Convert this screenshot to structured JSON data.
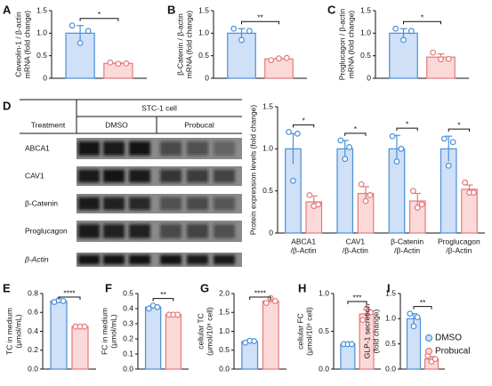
{
  "chart_data": [
    {
      "type": "bar",
      "panel": "A",
      "y_label": [
        "Caveolin-1 / β-actin",
        "mRNA (fold change)"
      ],
      "categories": [
        null
      ],
      "ylim": [
        0,
        1.5
      ],
      "yticks": [
        0,
        0.5,
        {
          "value": 1,
          "label": "1.0"
        },
        1.5
      ],
      "significance": [
        "*"
      ],
      "series": [
        {
          "color": "#4a90d9",
          "values": [
            1.0
          ],
          "errors": [
            0.17
          ],
          "points": [
            [
              1.17,
              0.78,
              1.05
            ]
          ]
        },
        {
          "color": "#e57a7a",
          "values": [
            0.33
          ],
          "errors": [
            0.02
          ],
          "points": [
            [
              0.35,
              0.32,
              0.33
            ]
          ]
        }
      ]
    },
    {
      "type": "bar",
      "panel": "B",
      "y_label": [
        "β-Catenin / β-actin",
        "mRNA (fold change)"
      ],
      "categories": [
        null
      ],
      "ylim": [
        0,
        1.5
      ],
      "yticks": [
        0,
        0.5,
        {
          "value": 1,
          "label": "1.0"
        },
        1.5
      ],
      "significance": [
        "**"
      ],
      "series": [
        {
          "color": "#4a90d9",
          "values": [
            1.0
          ],
          "errors": [
            0.1
          ],
          "points": [
            [
              1.1,
              0.85,
              1.05
            ]
          ]
        },
        {
          "color": "#e57a7a",
          "values": [
            0.43
          ],
          "errors": [
            0.02
          ],
          "points": [
            [
              0.4,
              0.44,
              0.45
            ]
          ]
        }
      ]
    },
    {
      "type": "bar",
      "panel": "C",
      "y_label": [
        "Proglucagon / β-actin",
        "mRNA (fold change)"
      ],
      "categories": [
        null
      ],
      "ylim": [
        0,
        1.5
      ],
      "yticks": [
        0,
        0.5,
        {
          "value": 1,
          "label": "1.0"
        },
        1.5
      ],
      "significance": [
        "*"
      ],
      "series": [
        {
          "color": "#4a90d9",
          "values": [
            1.0
          ],
          "errors": [
            0.1
          ],
          "points": [
            [
              1.1,
              0.85,
              1.05
            ]
          ]
        },
        {
          "color": "#e57a7a",
          "values": [
            0.47
          ],
          "errors": [
            0.07
          ],
          "points": [
            [
              0.57,
              0.42,
              0.43
            ]
          ]
        }
      ]
    },
    {
      "type": "bar",
      "y_label": [
        "Protein expression levels (fold change)"
      ],
      "categories": [
        [
          "ABCA1",
          "/β-Actin"
        ],
        [
          "CAV1",
          "/β-Actin"
        ],
        [
          "β-Catenin",
          "/β-Actin"
        ],
        [
          "Proglucagon",
          "/β-Actin"
        ]
      ],
      "ylim": [
        0,
        1.5
      ],
      "yticks": [
        0,
        0.5,
        {
          "value": 1,
          "label": "1.0"
        },
        1.5
      ],
      "significance": [
        "*",
        "*",
        "*",
        "*"
      ],
      "series": [
        {
          "color": "#4a90d9",
          "values": [
            1.0,
            1.0,
            1.0,
            1.0
          ],
          "errors": [
            0.18,
            0.1,
            0.16,
            0.15
          ],
          "points": [
            [
              1.2,
              0.62,
              1.18
            ],
            [
              1.1,
              0.88,
              1.02
            ],
            [
              1.15,
              0.85,
              1.0
            ],
            [
              1.12,
              0.8,
              1.08
            ]
          ]
        },
        {
          "color": "#e57a7a",
          "values": [
            0.37,
            0.47,
            0.38,
            0.52
          ],
          "errors": [
            0.07,
            0.08,
            0.09,
            0.05
          ],
          "points": [
            [
              0.45,
              0.32,
              0.34
            ],
            [
              0.58,
              0.38,
              0.45
            ],
            [
              0.5,
              0.3,
              0.34
            ],
            [
              0.6,
              0.48,
              0.48
            ]
          ]
        }
      ]
    },
    {
      "type": "bar",
      "panel": "E",
      "y_label": [
        "TC in medium",
        "(μmol/mL)"
      ],
      "categories": [
        null
      ],
      "ylim": [
        0,
        0.8
      ],
      "yticks": [
        {
          "value": 0,
          "label": "0.0"
        },
        0.2,
        0.4,
        0.6,
        0.8
      ],
      "significance": [
        "****"
      ],
      "series": [
        {
          "color": "#4a90d9",
          "values": [
            0.72
          ],
          "errors": [
            0.01
          ],
          "points": [
            [
              0.71,
              0.73,
              0.72
            ]
          ]
        },
        {
          "color": "#e57a7a",
          "values": [
            0.45
          ],
          "errors": [
            0.003
          ],
          "points": [
            [
              0.45,
              0.45,
              0.45
            ]
          ]
        }
      ]
    },
    {
      "type": "bar",
      "panel": "F",
      "y_label": [
        "FC in medium",
        "(μmol/mL)"
      ],
      "categories": [
        null
      ],
      "ylim": [
        0,
        0.5
      ],
      "yticks": [
        {
          "value": 0,
          "label": "0.0"
        },
        0.1,
        0.2,
        0.3,
        0.4,
        0.5
      ],
      "significance": [
        "**"
      ],
      "series": [
        {
          "color": "#4a90d9",
          "values": [
            0.41
          ],
          "errors": [
            0.01
          ],
          "points": [
            [
              0.4,
              0.42,
              0.41
            ]
          ]
        },
        {
          "color": "#e57a7a",
          "values": [
            0.36
          ],
          "errors": [
            0.003
          ],
          "points": [
            [
              0.36,
              0.36,
              0.36
            ]
          ]
        }
      ]
    },
    {
      "type": "bar",
      "panel": "G",
      "y_label": [
        "cellular TC",
        "(μmol/10⁶ cell)"
      ],
      "categories": [
        null
      ],
      "ylim": [
        0,
        2
      ],
      "yticks": [
        {
          "value": 0,
          "label": "0.0"
        },
        0.5,
        {
          "value": 1,
          "label": "1.0"
        },
        1.5,
        {
          "value": 2,
          "label": "2.0"
        }
      ],
      "significance": [
        "****"
      ],
      "series": [
        {
          "color": "#4a90d9",
          "values": [
            0.73
          ],
          "errors": [
            0.03
          ],
          "points": [
            [
              0.7,
              0.75,
              0.74
            ]
          ]
        },
        {
          "color": "#e57a7a",
          "values": [
            1.8
          ],
          "errors": [
            0.05
          ],
          "points": [
            [
              1.75,
              1.88,
              1.8
            ]
          ]
        }
      ]
    },
    {
      "type": "bar",
      "panel": "H",
      "y_label": [
        "cellular FC",
        "(μmol/10⁶ cell)"
      ],
      "categories": [
        null
      ],
      "ylim": [
        0,
        1
      ],
      "yticks": [
        {
          "value": 0,
          "label": "0.0"
        },
        0.5,
        {
          "value": 1,
          "label": "1.0"
        }
      ],
      "significance": [
        "***"
      ],
      "series": [
        {
          "color": "#4a90d9",
          "values": [
            0.33
          ],
          "errors": [
            0.01
          ],
          "points": [
            [
              0.33,
              0.33,
              0.33
            ]
          ]
        },
        {
          "color": "#e57a7a",
          "values": [
            0.73
          ],
          "errors": [
            0.06
          ],
          "points": [
            [
              0.65,
              0.8,
              0.75
            ]
          ]
        }
      ]
    },
    {
      "type": "bar",
      "panel": "I",
      "y_label": [
        "GLP-1 secretion",
        "(fold change)"
      ],
      "categories": [
        null
      ],
      "ylim": [
        0,
        1.5
      ],
      "yticks": [
        {
          "value": 0,
          "label": "0.0"
        },
        0.5,
        {
          "value": 1,
          "label": "1.0"
        },
        1.5
      ],
      "significance": [
        "**"
      ],
      "series": [
        {
          "name": "DMSO",
          "color": "#4a90d9",
          "values": [
            1.0
          ],
          "errors": [
            0.1
          ],
          "points": [
            [
              1.1,
              0.85,
              1.03
            ]
          ]
        },
        {
          "name": "Probucal",
          "color": "#e57a7a",
          "values": [
            0.2
          ],
          "errors": [
            0.05
          ],
          "points": [
            [
              0.27,
              0.15,
              0.2
            ]
          ]
        }
      ]
    }
  ],
  "blot": {
    "panel": "D",
    "cell": "STC-1 cell",
    "treatment": "Treatment",
    "groups": [
      "DMSO",
      "Probucal"
    ],
    "rows": [
      "ABCA1",
      "CAV1",
      "β-Catenin",
      "Proglucagon",
      "β-Actin"
    ]
  }
}
